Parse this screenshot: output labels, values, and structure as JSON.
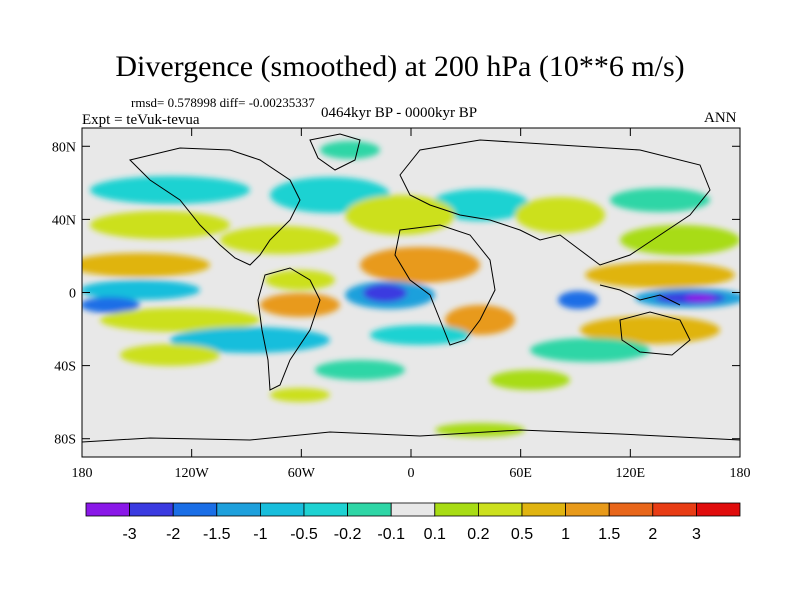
{
  "figure": {
    "title": "Divergence (smoothed) at 200 hPa (10**6 m/s)",
    "stats": "rmsd= 0.578998 diff= -0.00235337",
    "experiment": "Expt = teVuk-tevua",
    "period": "0464kyr BP - 0000kyr BP",
    "season": "ANN"
  },
  "map": {
    "projection": "cylindrical-equidistant",
    "lon_range": [
      -180,
      180
    ],
    "lat_range": [
      -90,
      90
    ],
    "x_ticks": [
      {
        "value": -180,
        "label": "180"
      },
      {
        "value": -120,
        "label": "120W"
      },
      {
        "value": -60,
        "label": "60W"
      },
      {
        "value": 0,
        "label": "0"
      },
      {
        "value": 60,
        "label": "60E"
      },
      {
        "value": 120,
        "label": "120E"
      },
      {
        "value": 180,
        "label": "180"
      }
    ],
    "y_ticks": [
      {
        "value": 80,
        "label": "80N"
      },
      {
        "value": 40,
        "label": "40N"
      },
      {
        "value": 0,
        "label": "0"
      },
      {
        "value": -40,
        "label": "40S"
      },
      {
        "value": -80,
        "label": "80S"
      }
    ],
    "background_color": "#e8e8e8"
  },
  "colorbar": {
    "levels": [
      "-3",
      "-2",
      "-1.5",
      "-1",
      "-0.5",
      "-0.2",
      "-0.1",
      "0.1",
      "0.2",
      "0.5",
      "1",
      "1.5",
      "2",
      "3"
    ],
    "colors": [
      "#8a18e8",
      "#3a3ae0",
      "#1a6ee6",
      "#1ea0dc",
      "#18bedc",
      "#1ed2d2",
      "#2ed6a6",
      "#e8e8e8",
      "#a8dc14",
      "#cce01e",
      "#e0b410",
      "#e89a1a",
      "#e8661a",
      "#e83c14",
      "#e00c0c"
    ]
  }
}
